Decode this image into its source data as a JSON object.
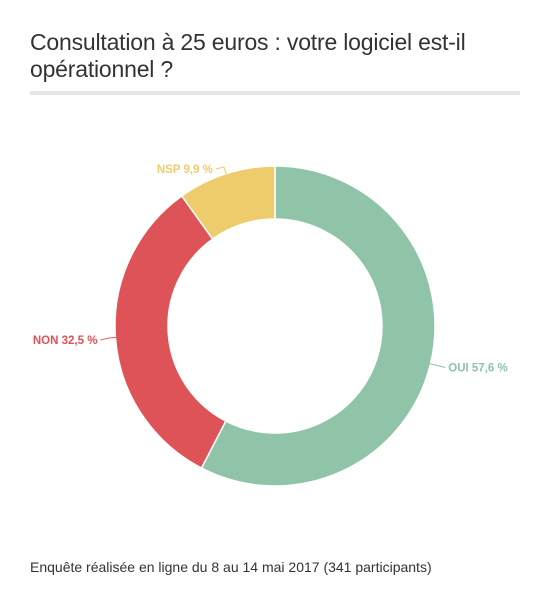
{
  "header": {
    "title": "Consultation à 25 euros : votre logiciel est-il opérationnel ?"
  },
  "footer": {
    "note": "Enquête réalisée en ligne du 8 au 14 mai 2017 (341 participants)"
  },
  "chart_data": {
    "type": "pie",
    "variant": "donut",
    "title": "Consultation à 25 euros : votre logiciel est-il opérationnel ?",
    "unit": "%",
    "slices": [
      {
        "label": "OUI",
        "value": 57.6,
        "display": "OUI 57,6 %",
        "color": "#8fc4a8"
      },
      {
        "label": "NON",
        "value": 32.5,
        "display": "NON 32,5 %",
        "color": "#de5357"
      },
      {
        "label": "NSP",
        "value": 9.9,
        "display": "NSP 9,9 %",
        "color": "#efcc6b"
      }
    ],
    "legend": "none",
    "data_labels": "outside"
  }
}
